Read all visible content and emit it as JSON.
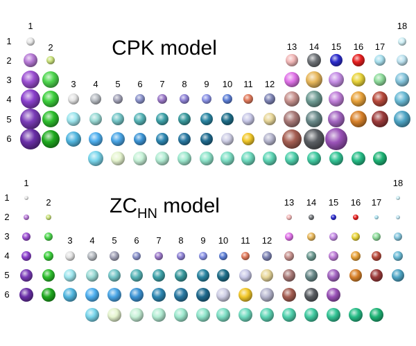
{
  "cpk_panel": {
    "title": "CPK model",
    "group_labels": [
      "1",
      "2",
      "3",
      "4",
      "5",
      "6",
      "7",
      "8",
      "9",
      "10",
      "11",
      "12",
      "13",
      "14",
      "15",
      "16",
      "17",
      "18"
    ],
    "period_labels": [
      "1",
      "2",
      "3",
      "4",
      "5",
      "6"
    ]
  },
  "zc_panel": {
    "title_main": "ZC",
    "title_sub": "HN",
    "title_rest": " model",
    "group_labels": [
      "1",
      "2",
      "3",
      "4",
      "5",
      "6",
      "7",
      "8",
      "9",
      "10",
      "11",
      "12",
      "13",
      "14",
      "15",
      "16",
      "17",
      "18"
    ],
    "period_labels": [
      "1",
      "2",
      "3",
      "4",
      "5",
      "6"
    ]
  },
  "palette": {
    "H": "#e6e6e6",
    "He": "#cfeff5",
    "Li": "#b77ad6",
    "Be": "#c8e07a",
    "B": "#f2b8b8",
    "C": "#6f7377",
    "N": "#2b2bcc",
    "O": "#e61f1f",
    "F": "#a9e0ee",
    "Ne": "#bde3f0",
    "Na": "#9b4fd1",
    "Mg": "#4ed64e",
    "Al": "#e073e8",
    "Si": "#e8b85c",
    "P": "#c68ee6",
    "S": "#e8d33a",
    "Cl": "#8fdc9c",
    "Ar": "#86c6dd",
    "K": "#8a3fcc",
    "Ca": "#3ccf3c",
    "Sc": "#e3e3e3",
    "Ti": "#b7bcc2",
    "V": "#a3a3b8",
    "Cr": "#8c94cc",
    "Mn": "#9c7ac9",
    "Fe": "#8f83d6",
    "Co": "#8b93e6",
    "Ni": "#5d7fd6",
    "Cu": "#e07a5c",
    "Zn": "#7f85b5",
    "Ga": "#c7928e",
    "Ge": "#6f9c94",
    "As": "#c07fd9",
    "Se": "#e8a23a",
    "Br": "#b84a3c",
    "Kr": "#6bbbd6",
    "Rb": "#7a3cb8",
    "Sr": "#2ebf2e",
    "Y": "#9ee6ee",
    "Zr": "#9bdbd6",
    "Nb": "#75c6c8",
    "Mo": "#58b5b8",
    "Tc": "#3fa3aa",
    "Ru": "#3a9a9e",
    "Rh": "#2a86a3",
    "Pd": "#1f6f8a",
    "Ag": "#c9c9e8",
    "Cd": "#e8d79a",
    "In": "#a97a78",
    "Sn": "#6a8a8a",
    "Sb": "#a466c2",
    "Te": "#d9822a",
    "I": "#9c3b3b",
    "Xe": "#4fa6c6",
    "Cs": "#6a2fa8",
    "Ba": "#1faa1f",
    "Lu": "#52b7e0",
    "Hf": "#4fb0f0",
    "Ta": "#4aa6e6",
    "W": "#3d95d6",
    "Re": "#2e88b3",
    "Os": "#2a7aa3",
    "Ir": "#1f6b8f",
    "Pt": "#cfcfe6",
    "Au": "#f2c82a",
    "Hg": "#b7b7cf",
    "Tl": "#a55e52",
    "Pb": "#5a5e63",
    "Bi": "#9a52b8",
    "La": "#7ad6ec",
    "Ce": "#e6f5d0",
    "Pr": "#c7f2d8",
    "Nd": "#b3edd4",
    "Pm": "#9ee9cf",
    "Sm": "#8fe5cb",
    "Eu": "#7fe0c6",
    "Gd": "#6fdbbf",
    "Tb": "#5fd6b6",
    "Dy": "#50d1ad",
    "Ho": "#42cba2",
    "Er": "#34c596",
    "Tm": "#27bd87",
    "Yb": "#1eb476"
  }
}
